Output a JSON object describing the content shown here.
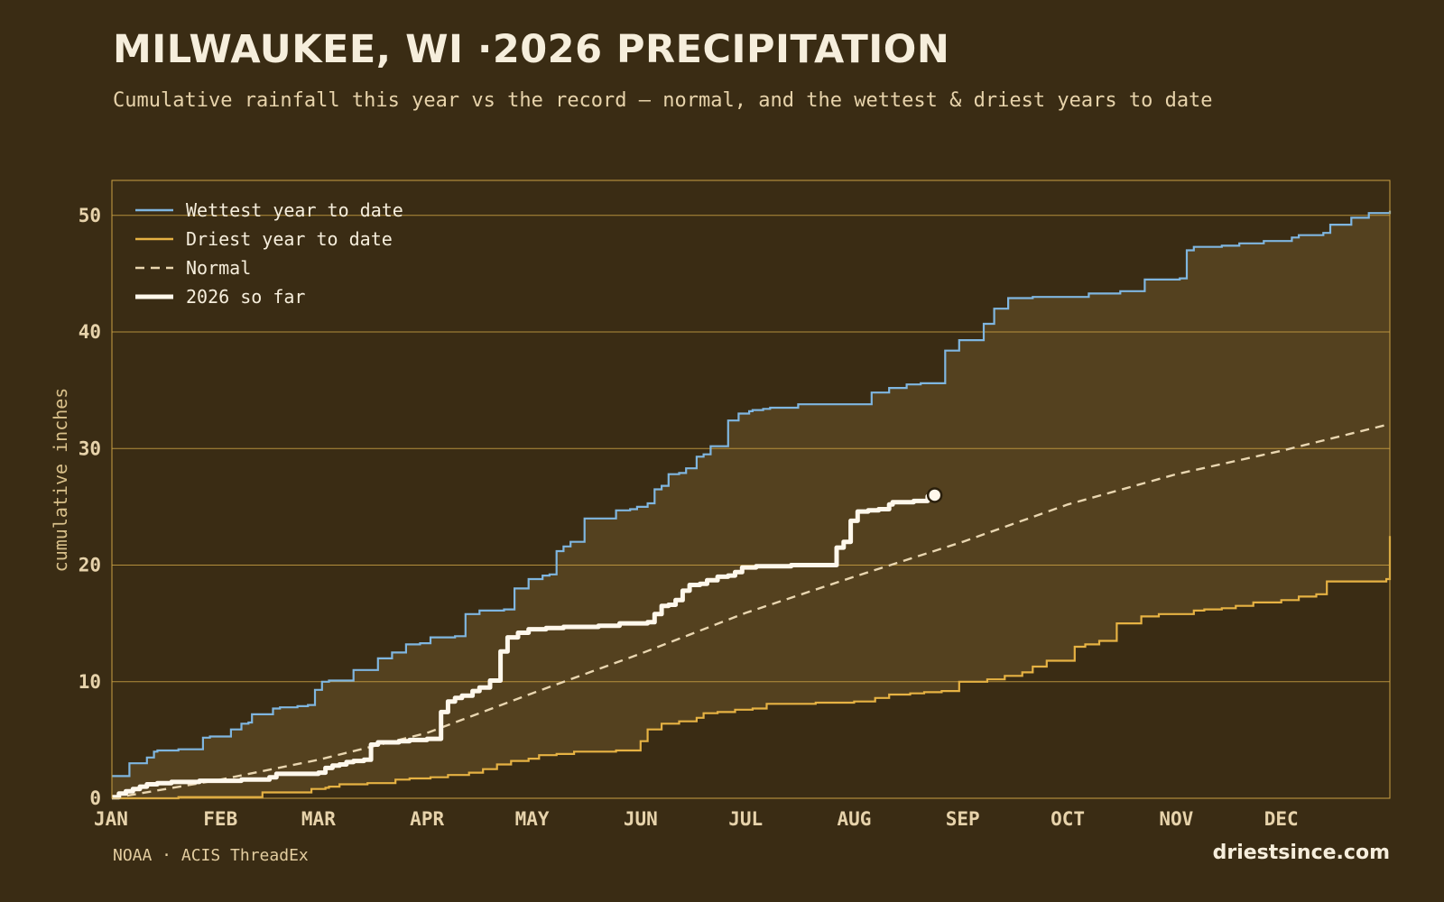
{
  "title": "MILWAUKEE, WI ·2026 PRECIPITATION",
  "subtitle": "Cumulative rainfall this year vs the record — normal, and the wettest & driest years to date",
  "source": "NOAA · ACIS ThreadEx",
  "brand": "driestsince.com",
  "colors": {
    "background": "#3a2c14",
    "band": "#54411f",
    "grid": "#c9a043",
    "wettest": "#7fb6e0",
    "driest": "#e6b243",
    "normal": "#e9d6b0",
    "current": "#fff8ec"
  },
  "chart_data": {
    "type": "line",
    "ylabel": "cumulative inches",
    "ylim": [
      0,
      53
    ],
    "yticks": [
      0,
      10,
      20,
      30,
      40,
      50
    ],
    "xlim": [
      1,
      366
    ],
    "month_ticks": [
      {
        "label": "JAN",
        "day": 1
      },
      {
        "label": "FEB",
        "day": 32
      },
      {
        "label": "MAR",
        "day": 60
      },
      {
        "label": "APR",
        "day": 91
      },
      {
        "label": "MAY",
        "day": 121
      },
      {
        "label": "JUN",
        "day": 152
      },
      {
        "label": "JUL",
        "day": 182
      },
      {
        "label": "AUG",
        "day": 213
      },
      {
        "label": "SEP",
        "day": 244
      },
      {
        "label": "OCT",
        "day": 274
      },
      {
        "label": "NOV",
        "day": 305
      },
      {
        "label": "DEC",
        "day": 335
      }
    ],
    "grid": true,
    "legend_position": "top-left",
    "series": [
      {
        "name": "Wettest year to date",
        "style": "solid",
        "x": [
          1,
          5,
          6,
          10,
          11,
          13,
          14,
          18,
          20,
          23,
          27,
          29,
          31,
          35,
          38,
          40,
          41,
          44,
          47,
          49,
          51,
          54,
          57,
          59,
          61,
          63,
          65,
          70,
          72,
          77,
          81,
          82,
          85,
          89,
          92,
          95,
          96,
          99,
          102,
          106,
          109,
          113,
          114,
          116,
          120,
          124,
          126,
          128,
          130,
          132,
          136,
          138,
          139,
          141,
          142,
          145,
          149,
          151,
          154,
          156,
          158,
          160,
          163,
          165,
          168,
          170,
          172,
          174,
          177,
          180,
          183,
          184,
          186,
          187,
          189,
          191,
          197,
          202,
          207,
          218,
          223,
          228,
          232,
          234,
          239,
          243,
          245,
          250,
          253,
          257,
          261,
          264,
          270,
          279,
          280,
          289,
          293,
          296,
          306,
          308,
          310,
          318,
          323,
          330,
          338,
          340,
          347,
          349,
          355,
          360,
          366
        ],
        "y": [
          1.9,
          1.9,
          3.0,
          3.0,
          3.5,
          4.0,
          4.1,
          4.1,
          4.2,
          4.2,
          5.2,
          5.3,
          5.3,
          5.9,
          6.4,
          6.5,
          7.2,
          7.2,
          7.7,
          7.8,
          7.8,
          7.9,
          8.0,
          9.3,
          10.0,
          10.1,
          10.1,
          11.0,
          11.0,
          12.0,
          12.5,
          12.5,
          13.2,
          13.3,
          13.8,
          13.8,
          13.8,
          13.9,
          15.8,
          16.1,
          16.1,
          16.2,
          16.2,
          18.0,
          18.8,
          19.1,
          19.2,
          21.2,
          21.6,
          22.0,
          24.0,
          24.0,
          24.0,
          24.0,
          24.0,
          24.7,
          24.8,
          25.0,
          25.3,
          26.5,
          26.8,
          27.8,
          27.9,
          28.3,
          29.3,
          29.5,
          30.2,
          30.2,
          32.4,
          33.0,
          33.2,
          33.3,
          33.3,
          33.4,
          33.5,
          33.5,
          33.8,
          33.8,
          33.8,
          34.8,
          35.2,
          35.5,
          35.6,
          35.6,
          38.4,
          39.3,
          39.3,
          40.7,
          42.0,
          42.9,
          42.9,
          43.0,
          43.0,
          43.0,
          43.3,
          43.5,
          43.5,
          44.5,
          44.6,
          47.0,
          47.3,
          47.4,
          47.6,
          47.8,
          48.1,
          48.3,
          48.5,
          49.2,
          49.8,
          50.2,
          50.4
        ],
        "color": "#7fb6e0"
      },
      {
        "name": "Driest year to date",
        "style": "solid",
        "x": [
          1,
          20,
          28,
          41,
          44,
          55,
          58,
          62,
          63,
          66,
          71,
          74,
          77,
          82,
          86,
          92,
          97,
          103,
          107,
          111,
          115,
          120,
          123,
          128,
          133,
          140,
          145,
          150,
          152,
          154,
          158,
          163,
          168,
          170,
          174,
          179,
          184,
          188,
          195,
          202,
          207,
          213,
          219,
          223,
          229,
          233,
          238,
          243,
          251,
          256,
          261,
          264,
          268,
          276,
          279,
          283,
          288,
          295,
          300,
          310,
          313,
          318,
          322,
          327,
          335,
          340,
          345,
          348,
          353,
          360,
          365,
          366
        ],
        "y": [
          0.0,
          0.1,
          0.1,
          0.1,
          0.5,
          0.5,
          0.8,
          0.9,
          1.0,
          1.2,
          1.2,
          1.3,
          1.3,
          1.6,
          1.7,
          1.8,
          2.0,
          2.2,
          2.5,
          2.9,
          3.2,
          3.4,
          3.7,
          3.8,
          4.0,
          4.0,
          4.1,
          4.1,
          4.9,
          5.9,
          6.4,
          6.6,
          6.9,
          7.3,
          7.4,
          7.6,
          7.7,
          8.1,
          8.1,
          8.2,
          8.2,
          8.3,
          8.6,
          8.9,
          9.0,
          9.1,
          9.2,
          10.0,
          10.2,
          10.5,
          10.8,
          11.3,
          11.8,
          13.0,
          13.2,
          13.5,
          15.0,
          15.6,
          15.8,
          16.1,
          16.2,
          16.3,
          16.5,
          16.8,
          17.0,
          17.3,
          17.5,
          18.6,
          18.6,
          18.6,
          18.8,
          22.5
        ],
        "color": "#e6b243"
      },
      {
        "name": "Normal",
        "style": "dashed",
        "x": [
          1,
          32,
          60,
          91,
          121,
          152,
          182,
          213,
          244,
          274,
          305,
          335,
          366
        ],
        "y": [
          0.0,
          1.6,
          3.3,
          5.6,
          9.0,
          12.4,
          15.9,
          19.0,
          22.0,
          25.2,
          27.8,
          29.8,
          32.1
        ],
        "color": "#e9d6b0"
      },
      {
        "name": "2026 so far",
        "style": "thick",
        "x": [
          1,
          3,
          5,
          7,
          9,
          11,
          14,
          18,
          22,
          26,
          30,
          34,
          38,
          42,
          44,
          46,
          48,
          52,
          56,
          60,
          62,
          64,
          66,
          68,
          70,
          73,
          75,
          77,
          80,
          83,
          86,
          89,
          91,
          93,
          95,
          97,
          99,
          101,
          104,
          106,
          109,
          112,
          114,
          117,
          120,
          125,
          130,
          135,
          140,
          144,
          146,
          150,
          154,
          156,
          158,
          160,
          162,
          164,
          166,
          169,
          171,
          174,
          177,
          179,
          181,
          185,
          190,
          195,
          200,
          204,
          206,
          208,
          210,
          212,
          214,
          217,
          220,
          223,
          224,
          226,
          230,
          234,
          236
        ],
        "y": [
          0.1,
          0.4,
          0.6,
          0.8,
          1.0,
          1.2,
          1.3,
          1.4,
          1.4,
          1.5,
          1.5,
          1.5,
          1.6,
          1.6,
          1.6,
          1.8,
          2.1,
          2.1,
          2.1,
          2.2,
          2.6,
          2.8,
          2.9,
          3.1,
          3.2,
          3.3,
          4.6,
          4.8,
          4.8,
          4.9,
          5.0,
          5.0,
          5.1,
          5.1,
          7.4,
          8.3,
          8.6,
          8.8,
          9.2,
          9.5,
          10.1,
          12.6,
          13.8,
          14.2,
          14.5,
          14.6,
          14.7,
          14.7,
          14.8,
          14.8,
          15.0,
          15.0,
          15.1,
          15.8,
          16.5,
          16.6,
          17.0,
          17.8,
          18.3,
          18.4,
          18.7,
          19.0,
          19.1,
          19.4,
          19.8,
          19.9,
          19.9,
          20.0,
          20.0,
          20.0,
          20.0,
          21.5,
          22.0,
          23.8,
          24.6,
          24.7,
          24.8,
          25.2,
          25.4,
          25.4,
          25.5,
          25.9,
          26.0
        ],
        "color": "#fff8ec"
      }
    ]
  }
}
